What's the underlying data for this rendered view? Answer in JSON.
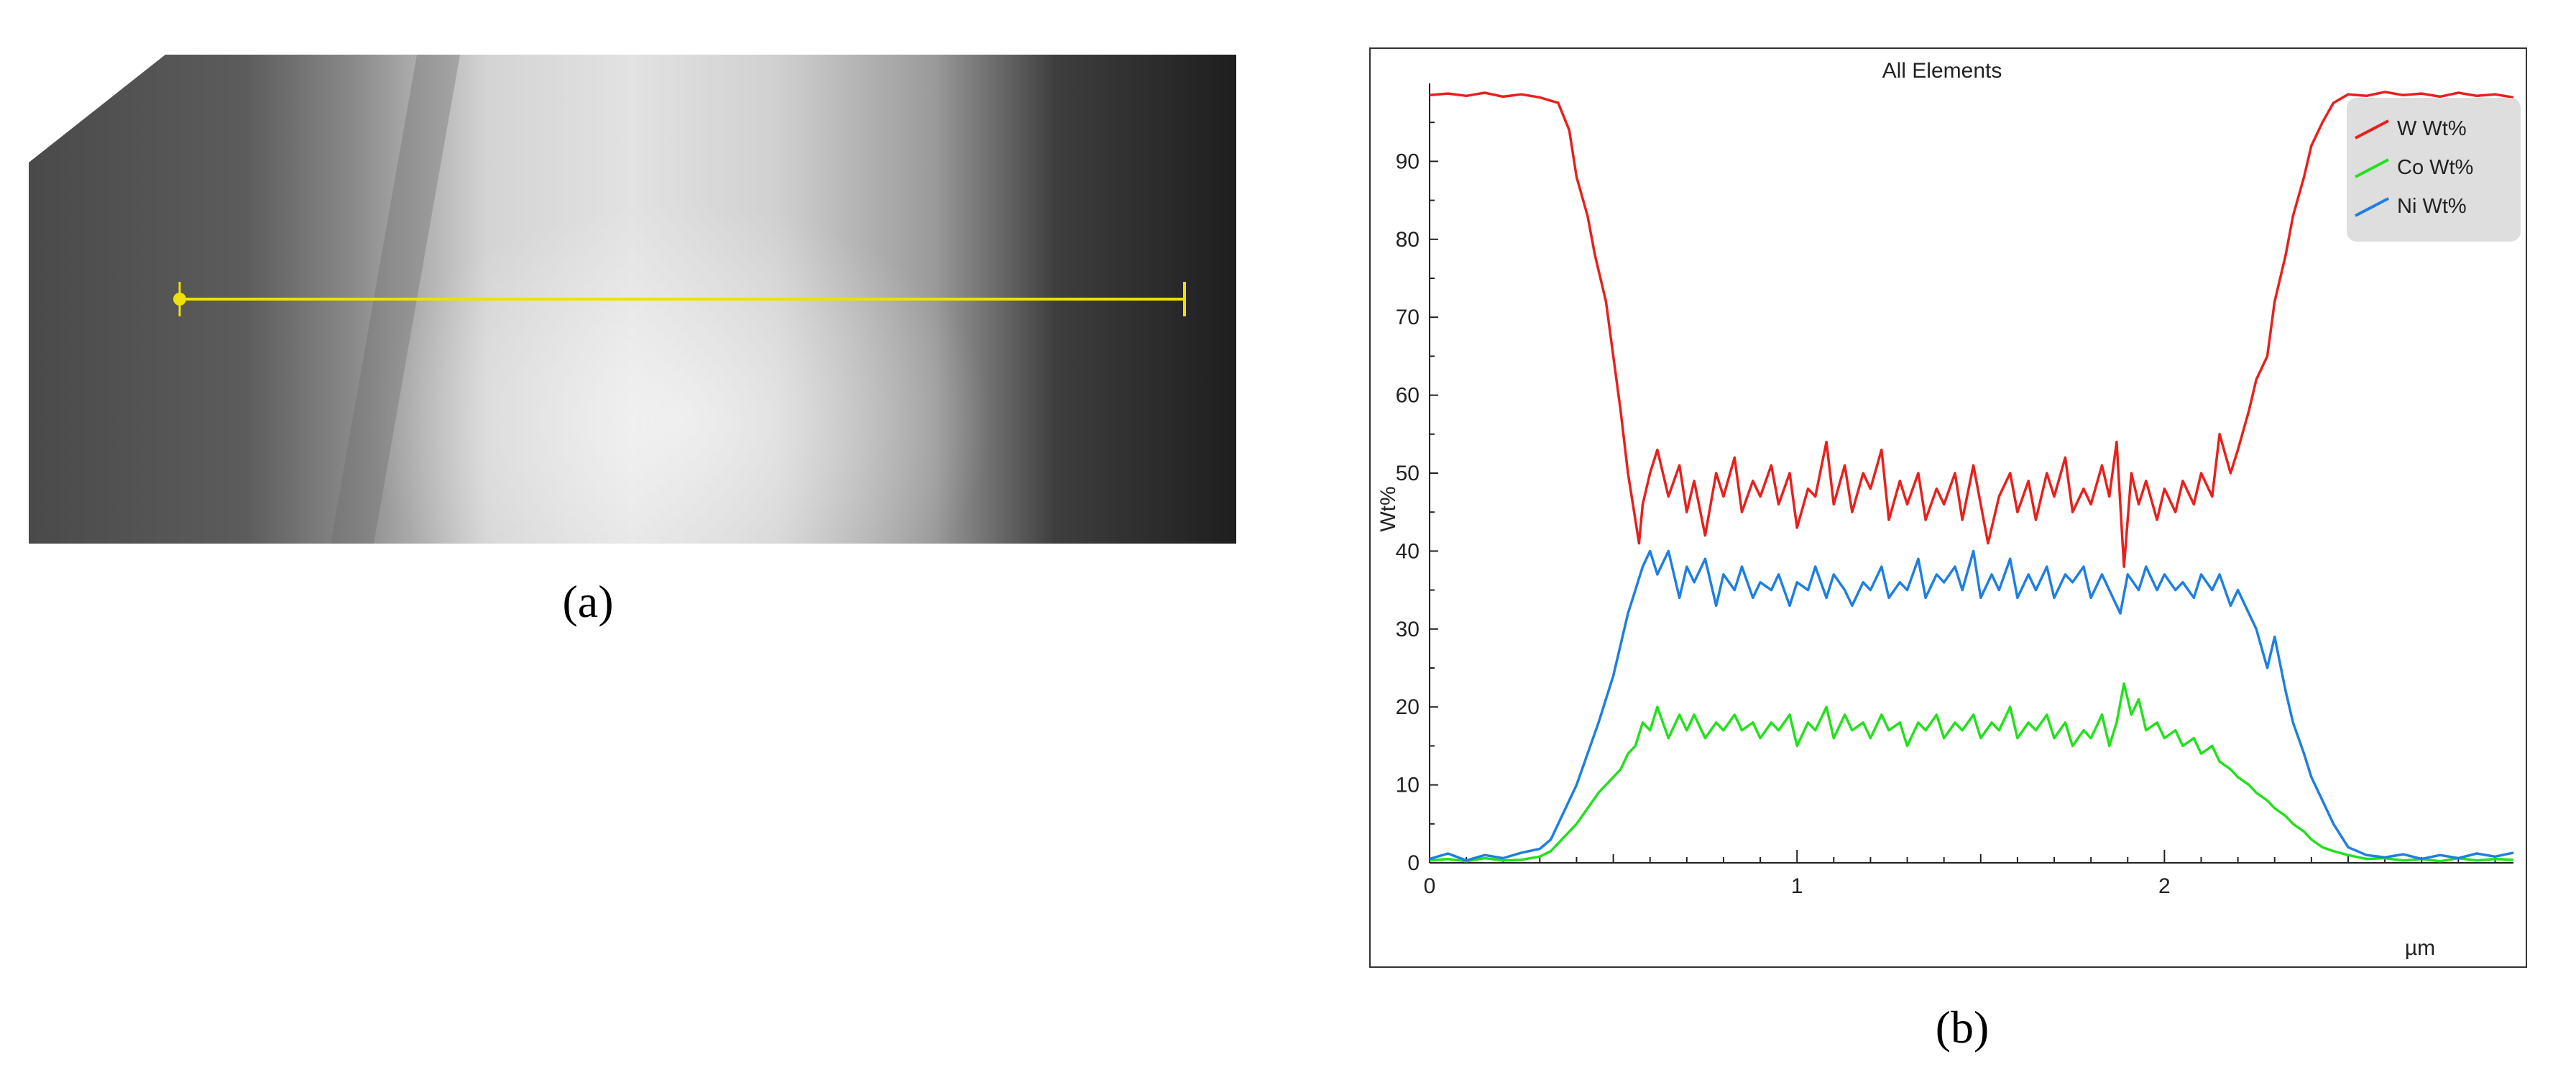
{
  "figure": {
    "label_a": "(a)",
    "label_b": "(b)"
  },
  "micrograph": {
    "line_color": "#f0e000"
  },
  "chart_data": {
    "type": "line",
    "title": "All Elements",
    "xlabel": "µm",
    "ylabel": "Wt%",
    "xlim": [
      0,
      2.95
    ],
    "ylim": [
      0,
      100
    ],
    "x_ticks": [
      0,
      1,
      2
    ],
    "y_ticks": [
      0,
      10,
      20,
      30,
      40,
      50,
      60,
      70,
      80,
      90
    ],
    "grid": false,
    "legend_position": "top-right",
    "series": [
      {
        "name": "W Wt%",
        "color": "#e8201c",
        "points": [
          [
            0,
            98.5
          ],
          [
            0.05,
            98.7
          ],
          [
            0.1,
            98.4
          ],
          [
            0.15,
            98.8
          ],
          [
            0.2,
            98.3
          ],
          [
            0.25,
            98.6
          ],
          [
            0.3,
            98.2
          ],
          [
            0.35,
            97.5
          ],
          [
            0.38,
            94
          ],
          [
            0.4,
            88
          ],
          [
            0.43,
            83
          ],
          [
            0.45,
            78
          ],
          [
            0.48,
            72
          ],
          [
            0.5,
            65
          ],
          [
            0.52,
            58
          ],
          [
            0.54,
            50
          ],
          [
            0.56,
            44
          ],
          [
            0.57,
            41
          ],
          [
            0.58,
            46
          ],
          [
            0.6,
            50
          ],
          [
            0.62,
            53
          ],
          [
            0.65,
            47
          ],
          [
            0.68,
            51
          ],
          [
            0.7,
            45
          ],
          [
            0.72,
            49
          ],
          [
            0.75,
            42
          ],
          [
            0.78,
            50
          ],
          [
            0.8,
            47
          ],
          [
            0.83,
            52
          ],
          [
            0.85,
            45
          ],
          [
            0.88,
            49
          ],
          [
            0.9,
            47
          ],
          [
            0.93,
            51
          ],
          [
            0.95,
            46
          ],
          [
            0.98,
            50
          ],
          [
            1.0,
            43
          ],
          [
            1.03,
            48
          ],
          [
            1.05,
            47
          ],
          [
            1.08,
            54
          ],
          [
            1.1,
            46
          ],
          [
            1.13,
            51
          ],
          [
            1.15,
            45
          ],
          [
            1.18,
            50
          ],
          [
            1.2,
            48
          ],
          [
            1.23,
            53
          ],
          [
            1.25,
            44
          ],
          [
            1.28,
            49
          ],
          [
            1.3,
            46
          ],
          [
            1.33,
            50
          ],
          [
            1.35,
            44
          ],
          [
            1.38,
            48
          ],
          [
            1.4,
            46
          ],
          [
            1.43,
            50
          ],
          [
            1.45,
            44
          ],
          [
            1.48,
            51
          ],
          [
            1.5,
            46
          ],
          [
            1.52,
            41
          ],
          [
            1.55,
            47
          ],
          [
            1.58,
            50
          ],
          [
            1.6,
            45
          ],
          [
            1.63,
            49
          ],
          [
            1.65,
            44
          ],
          [
            1.68,
            50
          ],
          [
            1.7,
            47
          ],
          [
            1.73,
            52
          ],
          [
            1.75,
            45
          ],
          [
            1.78,
            48
          ],
          [
            1.8,
            46
          ],
          [
            1.83,
            51
          ],
          [
            1.85,
            47
          ],
          [
            1.87,
            54
          ],
          [
            1.89,
            38
          ],
          [
            1.91,
            50
          ],
          [
            1.93,
            46
          ],
          [
            1.95,
            49
          ],
          [
            1.98,
            44
          ],
          [
            2.0,
            48
          ],
          [
            2.03,
            45
          ],
          [
            2.05,
            49
          ],
          [
            2.08,
            46
          ],
          [
            2.1,
            50
          ],
          [
            2.13,
            47
          ],
          [
            2.15,
            55
          ],
          [
            2.18,
            50
          ],
          [
            2.2,
            53
          ],
          [
            2.23,
            58
          ],
          [
            2.25,
            62
          ],
          [
            2.28,
            65
          ],
          [
            2.3,
            72
          ],
          [
            2.33,
            78
          ],
          [
            2.35,
            83
          ],
          [
            2.38,
            88
          ],
          [
            2.4,
            92
          ],
          [
            2.43,
            95
          ],
          [
            2.46,
            97.5
          ],
          [
            2.5,
            98.6
          ],
          [
            2.55,
            98.4
          ],
          [
            2.6,
            98.9
          ],
          [
            2.65,
            98.5
          ],
          [
            2.7,
            98.7
          ],
          [
            2.75,
            98.3
          ],
          [
            2.8,
            98.8
          ],
          [
            2.85,
            98.4
          ],
          [
            2.9,
            98.6
          ],
          [
            2.95,
            98.2
          ]
        ]
      },
      {
        "name": "Co Wt%",
        "color": "#22e11c",
        "points": [
          [
            0,
            0.3
          ],
          [
            0.05,
            0.5
          ],
          [
            0.1,
            0.2
          ],
          [
            0.15,
            0.6
          ],
          [
            0.2,
            0.3
          ],
          [
            0.25,
            0.4
          ],
          [
            0.3,
            0.8
          ],
          [
            0.33,
            1.5
          ],
          [
            0.36,
            3
          ],
          [
            0.4,
            5
          ],
          [
            0.43,
            7
          ],
          [
            0.46,
            9
          ],
          [
            0.5,
            11
          ],
          [
            0.52,
            12
          ],
          [
            0.54,
            14
          ],
          [
            0.56,
            15
          ],
          [
            0.58,
            18
          ],
          [
            0.6,
            17
          ],
          [
            0.62,
            20
          ],
          [
            0.65,
            16
          ],
          [
            0.68,
            19
          ],
          [
            0.7,
            17
          ],
          [
            0.72,
            19
          ],
          [
            0.75,
            16
          ],
          [
            0.78,
            18
          ],
          [
            0.8,
            17
          ],
          [
            0.83,
            19
          ],
          [
            0.85,
            17
          ],
          [
            0.88,
            18
          ],
          [
            0.9,
            16
          ],
          [
            0.93,
            18
          ],
          [
            0.95,
            17
          ],
          [
            0.98,
            19
          ],
          [
            1.0,
            15
          ],
          [
            1.03,
            18
          ],
          [
            1.05,
            17
          ],
          [
            1.08,
            20
          ],
          [
            1.1,
            16
          ],
          [
            1.13,
            19
          ],
          [
            1.15,
            17
          ],
          [
            1.18,
            18
          ],
          [
            1.2,
            16
          ],
          [
            1.23,
            19
          ],
          [
            1.25,
            17
          ],
          [
            1.28,
            18
          ],
          [
            1.3,
            15
          ],
          [
            1.33,
            18
          ],
          [
            1.35,
            17
          ],
          [
            1.38,
            19
          ],
          [
            1.4,
            16
          ],
          [
            1.43,
            18
          ],
          [
            1.45,
            17
          ],
          [
            1.48,
            19
          ],
          [
            1.5,
            16
          ],
          [
            1.53,
            18
          ],
          [
            1.55,
            17
          ],
          [
            1.58,
            20
          ],
          [
            1.6,
            16
          ],
          [
            1.63,
            18
          ],
          [
            1.65,
            17
          ],
          [
            1.68,
            19
          ],
          [
            1.7,
            16
          ],
          [
            1.73,
            18
          ],
          [
            1.75,
            15
          ],
          [
            1.78,
            17
          ],
          [
            1.8,
            16
          ],
          [
            1.83,
            19
          ],
          [
            1.85,
            15
          ],
          [
            1.87,
            18
          ],
          [
            1.89,
            23
          ],
          [
            1.91,
            19
          ],
          [
            1.93,
            21
          ],
          [
            1.95,
            17
          ],
          [
            1.98,
            18
          ],
          [
            2.0,
            16
          ],
          [
            2.03,
            17
          ],
          [
            2.05,
            15
          ],
          [
            2.08,
            16
          ],
          [
            2.1,
            14
          ],
          [
            2.13,
            15
          ],
          [
            2.15,
            13
          ],
          [
            2.18,
            12
          ],
          [
            2.2,
            11
          ],
          [
            2.23,
            10
          ],
          [
            2.25,
            9
          ],
          [
            2.28,
            8
          ],
          [
            2.3,
            7
          ],
          [
            2.33,
            6
          ],
          [
            2.35,
            5
          ],
          [
            2.38,
            4
          ],
          [
            2.4,
            3
          ],
          [
            2.43,
            2
          ],
          [
            2.46,
            1.5
          ],
          [
            2.5,
            1
          ],
          [
            2.55,
            0.5
          ],
          [
            2.6,
            0.6
          ],
          [
            2.65,
            0.3
          ],
          [
            2.7,
            0.5
          ],
          [
            2.75,
            0.2
          ],
          [
            2.8,
            0.6
          ],
          [
            2.85,
            0.3
          ],
          [
            2.9,
            0.5
          ],
          [
            2.95,
            0.4
          ]
        ]
      },
      {
        "name": "Ni Wt%",
        "color": "#1e7fe0",
        "points": [
          [
            0,
            0.5
          ],
          [
            0.05,
            1.2
          ],
          [
            0.1,
            0.3
          ],
          [
            0.15,
            1
          ],
          [
            0.2,
            0.6
          ],
          [
            0.25,
            1.3
          ],
          [
            0.3,
            1.8
          ],
          [
            0.33,
            3
          ],
          [
            0.36,
            6
          ],
          [
            0.4,
            10
          ],
          [
            0.43,
            14
          ],
          [
            0.46,
            18
          ],
          [
            0.5,
            24
          ],
          [
            0.52,
            28
          ],
          [
            0.54,
            32
          ],
          [
            0.56,
            35
          ],
          [
            0.58,
            38
          ],
          [
            0.6,
            40
          ],
          [
            0.62,
            37
          ],
          [
            0.65,
            40
          ],
          [
            0.68,
            34
          ],
          [
            0.7,
            38
          ],
          [
            0.72,
            36
          ],
          [
            0.75,
            39
          ],
          [
            0.78,
            33
          ],
          [
            0.8,
            37
          ],
          [
            0.83,
            35
          ],
          [
            0.85,
            38
          ],
          [
            0.88,
            34
          ],
          [
            0.9,
            36
          ],
          [
            0.93,
            35
          ],
          [
            0.95,
            37
          ],
          [
            0.98,
            33
          ],
          [
            1.0,
            36
          ],
          [
            1.03,
            35
          ],
          [
            1.05,
            38
          ],
          [
            1.08,
            34
          ],
          [
            1.1,
            37
          ],
          [
            1.13,
            35
          ],
          [
            1.15,
            33
          ],
          [
            1.18,
            36
          ],
          [
            1.2,
            35
          ],
          [
            1.23,
            38
          ],
          [
            1.25,
            34
          ],
          [
            1.28,
            36
          ],
          [
            1.3,
            35
          ],
          [
            1.33,
            39
          ],
          [
            1.35,
            34
          ],
          [
            1.38,
            37
          ],
          [
            1.4,
            36
          ],
          [
            1.43,
            38
          ],
          [
            1.45,
            35
          ],
          [
            1.48,
            40
          ],
          [
            1.5,
            34
          ],
          [
            1.53,
            37
          ],
          [
            1.55,
            35
          ],
          [
            1.58,
            39
          ],
          [
            1.6,
            34
          ],
          [
            1.63,
            37
          ],
          [
            1.65,
            35
          ],
          [
            1.68,
            38
          ],
          [
            1.7,
            34
          ],
          [
            1.73,
            37
          ],
          [
            1.75,
            36
          ],
          [
            1.78,
            38
          ],
          [
            1.8,
            34
          ],
          [
            1.83,
            37
          ],
          [
            1.85,
            35
          ],
          [
            1.88,
            32
          ],
          [
            1.9,
            37
          ],
          [
            1.93,
            35
          ],
          [
            1.95,
            38
          ],
          [
            1.98,
            35
          ],
          [
            2.0,
            37
          ],
          [
            2.03,
            35
          ],
          [
            2.05,
            36
          ],
          [
            2.08,
            34
          ],
          [
            2.1,
            37
          ],
          [
            2.13,
            35
          ],
          [
            2.15,
            37
          ],
          [
            2.18,
            33
          ],
          [
            2.2,
            35
          ],
          [
            2.23,
            32
          ],
          [
            2.25,
            30
          ],
          [
            2.28,
            25
          ],
          [
            2.3,
            29
          ],
          [
            2.33,
            22
          ],
          [
            2.35,
            18
          ],
          [
            2.38,
            14
          ],
          [
            2.4,
            11
          ],
          [
            2.43,
            8
          ],
          [
            2.46,
            5
          ],
          [
            2.5,
            2
          ],
          [
            2.55,
            1
          ],
          [
            2.6,
            0.7
          ],
          [
            2.65,
            1.1
          ],
          [
            2.7,
            0.5
          ],
          [
            2.75,
            1
          ],
          [
            2.8,
            0.6
          ],
          [
            2.85,
            1.2
          ],
          [
            2.9,
            0.8
          ],
          [
            2.95,
            1.3
          ]
        ]
      }
    ]
  }
}
